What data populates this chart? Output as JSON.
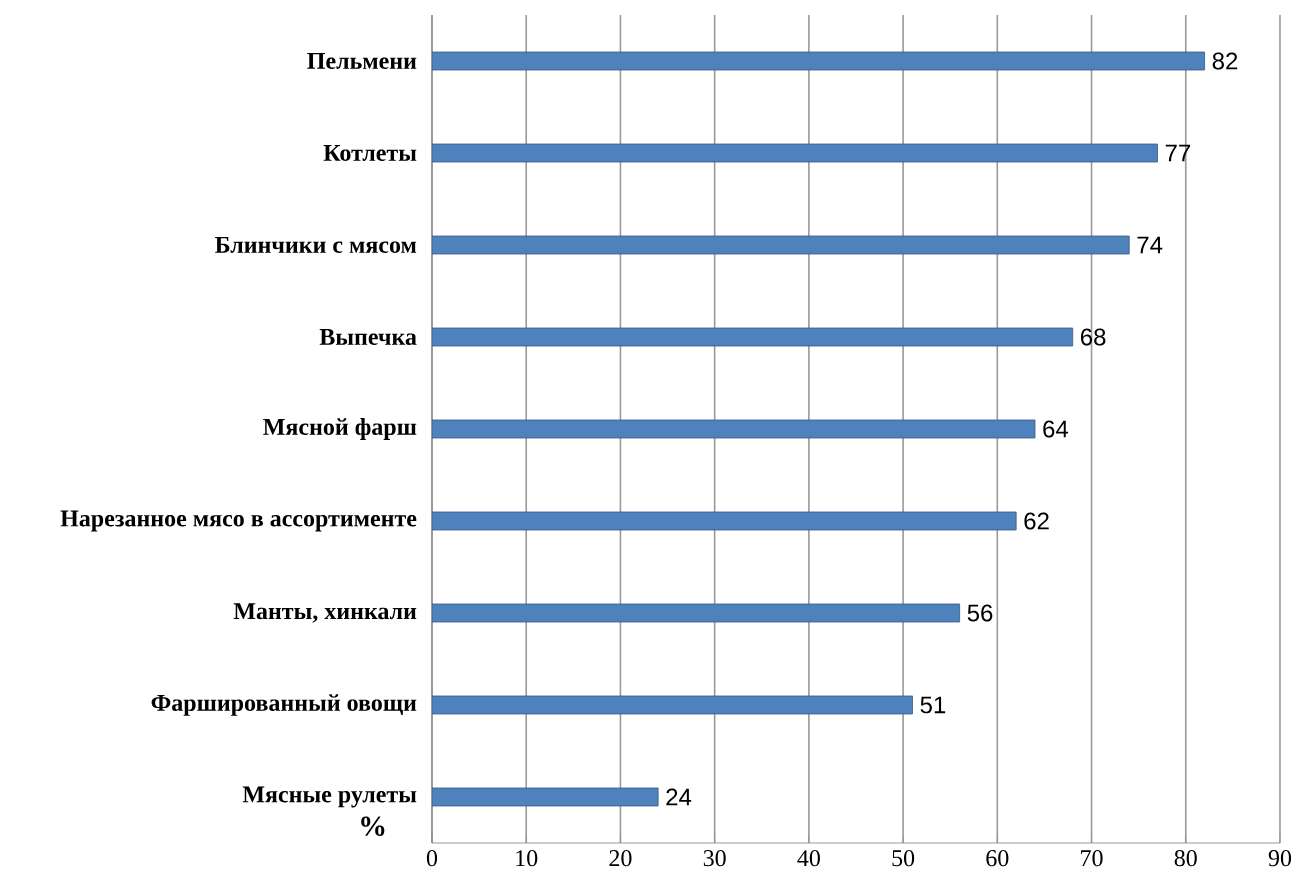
{
  "chart_data": {
    "type": "bar",
    "orientation": "horizontal",
    "categories": [
      "Пельмени",
      "Котлеты",
      "Блинчики с мясом",
      "Выпечка",
      "Мясной фарш",
      "Нарезанное мясо в ассортименте",
      "Манты, хинкали",
      "Фаршированный овощи",
      "Мясные рулеты"
    ],
    "values": [
      82,
      77,
      74,
      68,
      64,
      62,
      56,
      51,
      24
    ],
    "color": "#4f81bd",
    "xlabel": "%",
    "xlim": [
      0,
      90
    ],
    "xticks": [
      0,
      10,
      20,
      30,
      40,
      50,
      60,
      70,
      80,
      90
    ],
    "grid": "x",
    "data_labels": true
  }
}
